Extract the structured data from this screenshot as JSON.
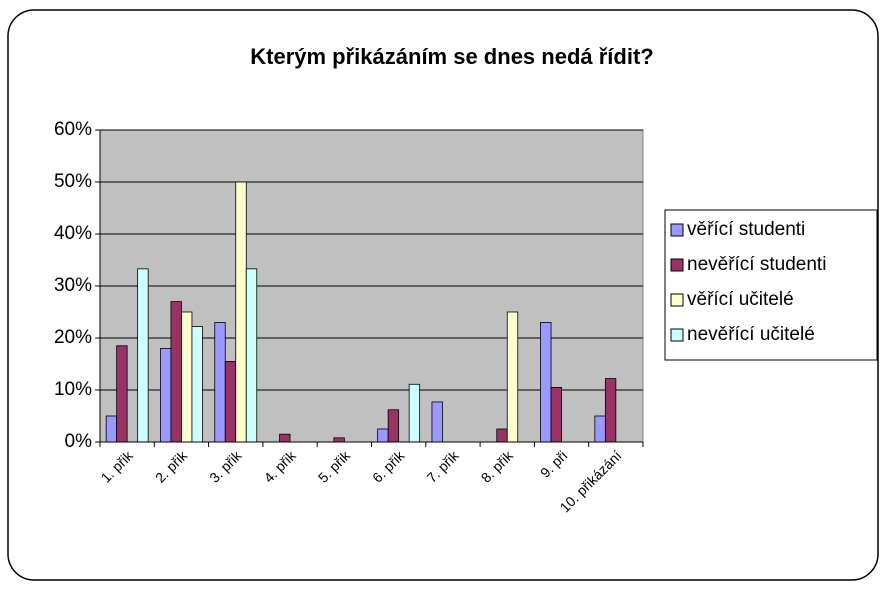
{
  "chart_data": {
    "type": "bar",
    "title": "Kterým přikázáním se dnes nedá řídit?",
    "categories": [
      "1. přik",
      "2. přik",
      "3. přik",
      "4. přik",
      "5. přik",
      "6. přik",
      "7. přik",
      "8. přik",
      "9. při",
      "10. přikázání"
    ],
    "series": [
      {
        "name": "věřící studenti",
        "color": "#9999ff",
        "values": [
          5,
          18,
          23,
          0,
          0,
          2.5,
          7.7,
          0,
          23,
          5
        ]
      },
      {
        "name": "nevěřící studenti",
        "color": "#993366",
        "values": [
          18.5,
          27,
          15.5,
          1.5,
          0.8,
          6.2,
          0,
          2.5,
          10.5,
          12.2
        ]
      },
      {
        "name": "věřící učitelé",
        "color": "#ffffcc",
        "values": [
          0,
          25,
          50,
          0,
          0,
          0,
          0,
          25,
          0,
          0
        ]
      },
      {
        "name": "nevěřící učitelé",
        "color": "#ccffff",
        "values": [
          33.3,
          22.2,
          33.3,
          0,
          0,
          11.1,
          0,
          0,
          0,
          0
        ]
      }
    ],
    "ylim": [
      0,
      60
    ],
    "yticks": [
      {
        "value": 0,
        "label": "0%"
      },
      {
        "value": 10,
        "label": "10%"
      },
      {
        "value": 20,
        "label": "20%"
      },
      {
        "value": 30,
        "label": "30%"
      },
      {
        "value": 40,
        "label": "40%"
      },
      {
        "value": 50,
        "label": "50%"
      },
      {
        "value": 60,
        "label": "60%"
      }
    ],
    "grid": true,
    "legend": "right",
    "plot_background": "#c0c0c0"
  }
}
